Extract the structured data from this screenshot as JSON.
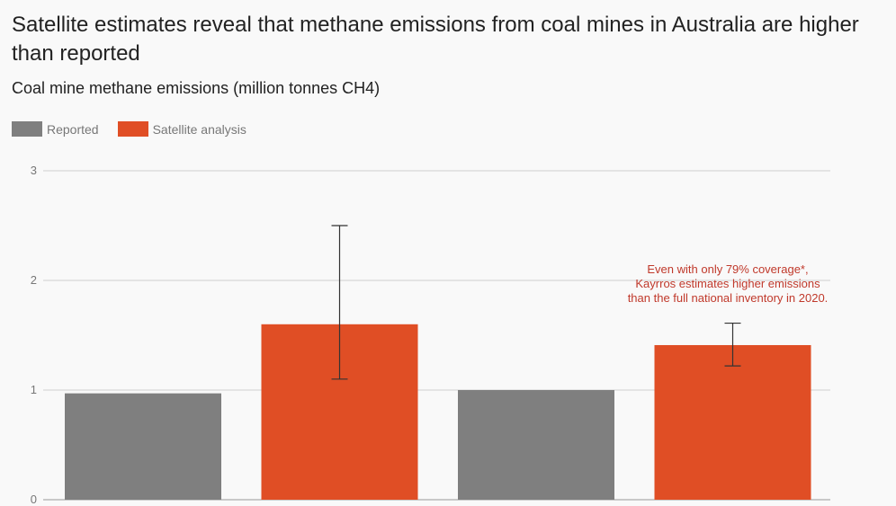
{
  "header": {
    "title": "Satellite estimates reveal that methane emissions from coal mines in Australia are higher than reported",
    "subtitle": "Coal mine methane emissions (million tonnes CH4)"
  },
  "legend": [
    {
      "label": "Reported",
      "color": "#7f7f7f"
    },
    {
      "label": "Satellite analysis",
      "color": "#e04e25"
    }
  ],
  "chart_data": {
    "type": "bar",
    "title": "Satellite estimates reveal that methane emissions from coal mines in Australia are higher than reported",
    "subtitle": "Coal mine methane emissions (million tonnes CH4)",
    "ylim": [
      0,
      3
    ],
    "yticks": [
      0,
      1,
      2,
      3
    ],
    "grid": true,
    "legend_position": "top-left",
    "bars": [
      {
        "series": "Reported",
        "value": 0.97,
        "color": "#7f7f7f"
      },
      {
        "series": "Satellite analysis",
        "value": 1.6,
        "error_low": 1.1,
        "error_high": 2.5,
        "color": "#e04e25"
      },
      {
        "series": "Reported",
        "value": 1.0,
        "color": "#7f7f7f"
      },
      {
        "series": "Satellite analysis",
        "value": 1.41,
        "error_low": 1.22,
        "error_high": 1.61,
        "color": "#e04e25"
      }
    ],
    "annotation": {
      "lines": [
        "Even with only 79% coverage*,",
        "Kayrros estimates higher emissions",
        "than the full national inventory in 2020."
      ]
    }
  }
}
